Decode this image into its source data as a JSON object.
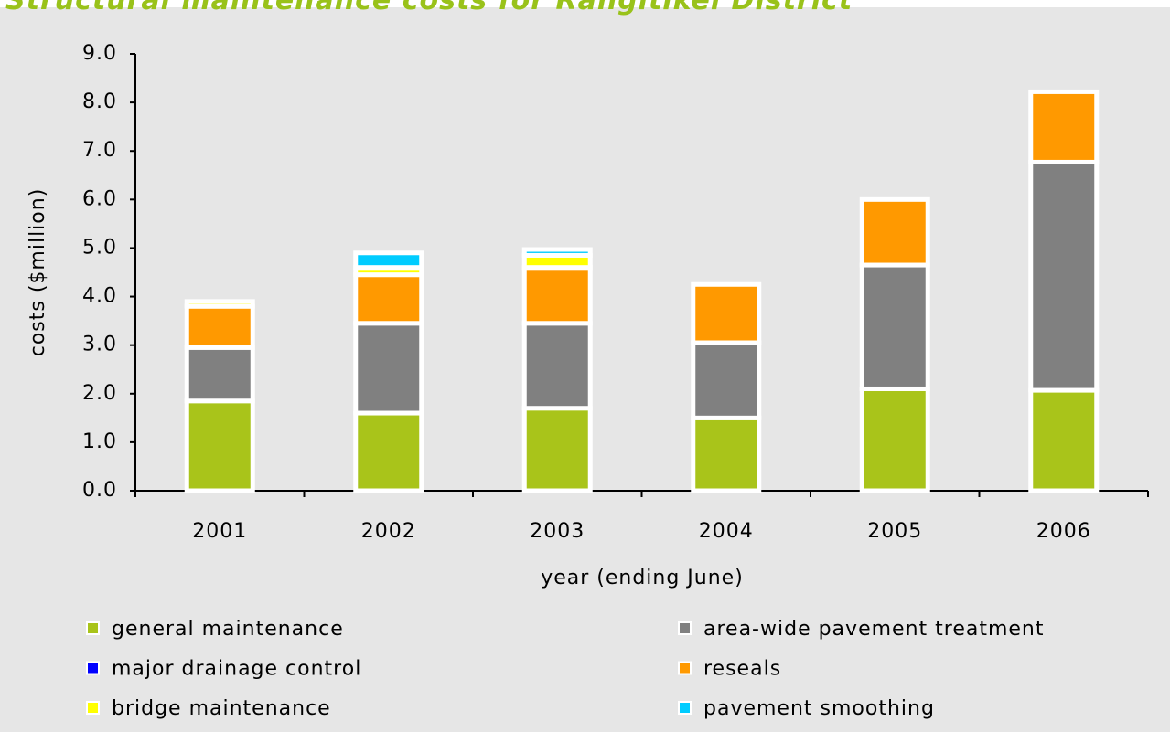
{
  "chart_data": {
    "type": "stacked-bar",
    "title": "Structural maintenance costs for Rangitikei District",
    "x_label": "year (ending June)",
    "y_label": "costs ($million)",
    "categories": [
      "2001",
      "2002",
      "2003",
      "2004",
      "2005",
      "2006"
    ],
    "series": [
      {
        "name": "general maintenance",
        "color": "#a9c41a",
        "values": [
          1.85,
          1.6,
          1.7,
          1.5,
          2.1,
          2.07
        ]
      },
      {
        "name": "area-wide pavement treatment",
        "color": "#808080",
        "values": [
          1.1,
          1.85,
          1.75,
          1.55,
          2.55,
          4.7
        ]
      },
      {
        "name": "major drainage control",
        "color": "#0000ff",
        "values": [
          0,
          0,
          0,
          0,
          0,
          0
        ]
      },
      {
        "name": "reseals",
        "color": "#ff9900",
        "values": [
          0.85,
          1.0,
          1.15,
          1.2,
          1.35,
          1.45
        ]
      },
      {
        "name": "bridge maintenance",
        "color": "#ffff00",
        "values": [
          0.1,
          0.15,
          0.25,
          0,
          0,
          0
        ]
      },
      {
        "name": "pavement smoothing",
        "color": "#00ccff",
        "values": [
          0,
          0.3,
          0.12,
          0,
          0,
          0
        ]
      }
    ],
    "ylim": [
      0,
      9
    ],
    "yticks": [
      {
        "value": 0,
        "label": "0.0"
      },
      {
        "value": 1,
        "label": "1.0"
      },
      {
        "value": 2,
        "label": "2.0"
      },
      {
        "value": 3,
        "label": "3.0"
      },
      {
        "value": 4,
        "label": "4.0"
      },
      {
        "value": 5,
        "label": "5.0"
      },
      {
        "value": 6,
        "label": "6.0"
      },
      {
        "value": 7,
        "label": "7.0"
      },
      {
        "value": 8,
        "label": "8.0"
      },
      {
        "value": 9,
        "label": "9.0"
      }
    ],
    "legend": "bottom"
  }
}
